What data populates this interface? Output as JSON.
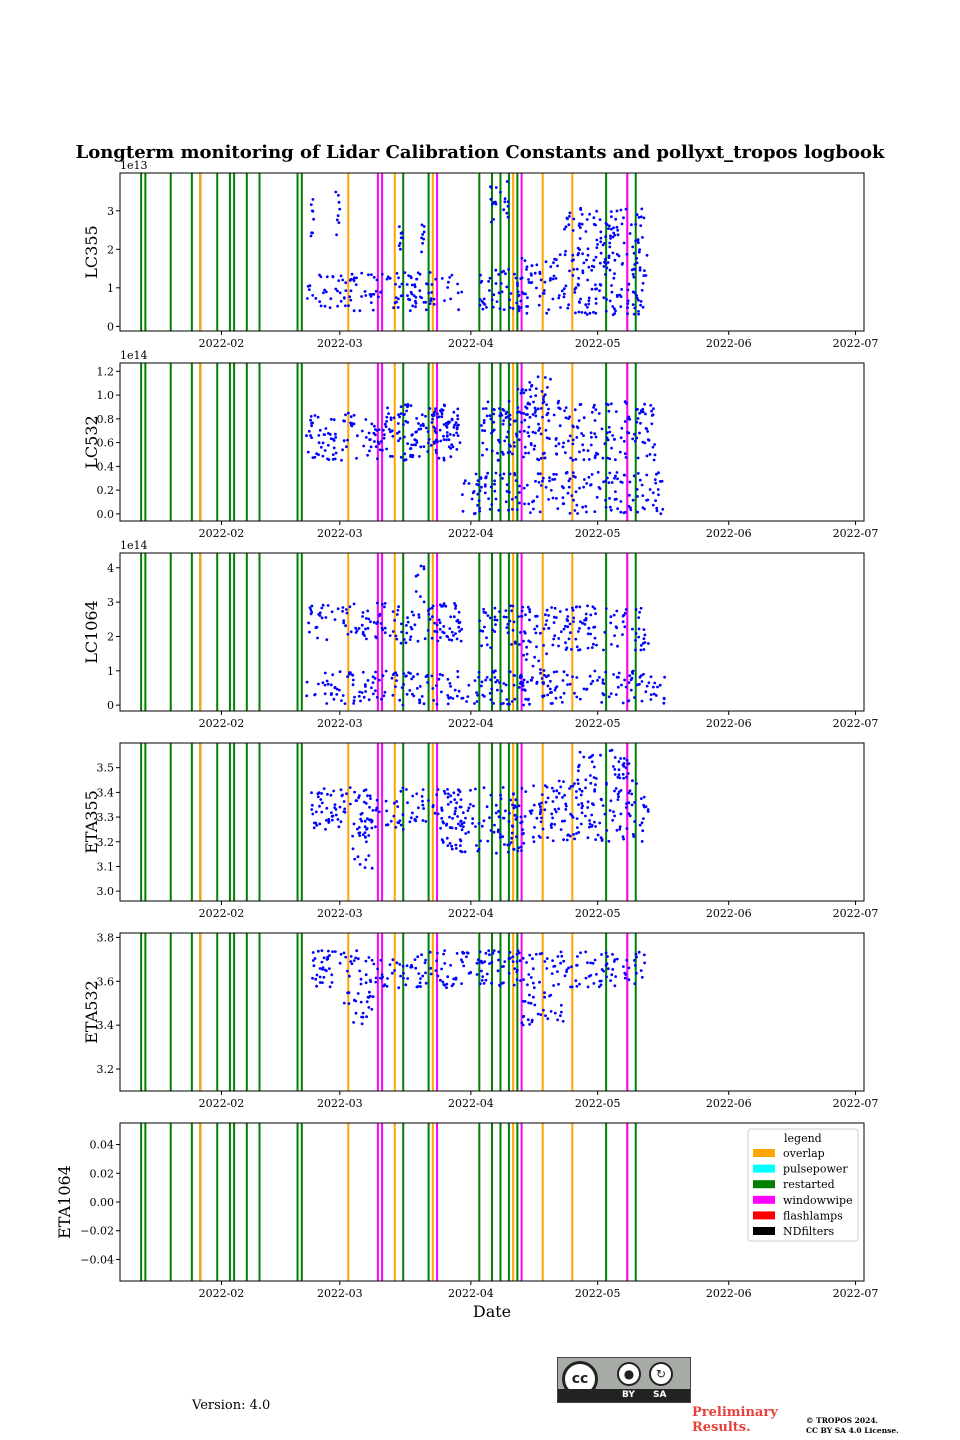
{
  "chart_data": {
    "type": "scatter",
    "title": "Longterm monitoring of Lidar Calibration Constants and pollyxt_tropos logbook",
    "xlabel": "Date",
    "x_range": [
      "2022-01-08",
      "2022-07-03"
    ],
    "x_ticks": [
      "2022-02",
      "2022-03",
      "2022-04",
      "2022-05",
      "2022-06",
      "2022-07"
    ],
    "x_tick_dates": [
      "2022-02-01",
      "2022-03-01",
      "2022-04-01",
      "2022-05-01",
      "2022-06-01",
      "2022-07-01"
    ],
    "point_color": "#0000ff",
    "events": {
      "overlap": [
        "2022-01-27",
        "2022-03-03",
        "2022-03-14",
        "2022-03-23",
        "2022-04-11",
        "2022-04-18",
        "2022-04-25",
        "2022-05-08"
      ],
      "restarted": [
        "2022-01-13",
        "2022-01-14",
        "2022-01-20",
        "2022-01-25",
        "2022-01-27",
        "2022-01-31",
        "2022-02-03",
        "2022-02-04",
        "2022-02-07",
        "2022-02-10",
        "2022-02-19",
        "2022-02-20",
        "2022-03-16",
        "2022-03-22",
        "2022-04-03",
        "2022-04-06",
        "2022-04-08",
        "2022-04-10",
        "2022-04-12",
        "2022-05-03",
        "2022-05-10"
      ],
      "windowwipe": [
        "2022-03-10",
        "2022-03-11",
        "2022-03-24",
        "2022-04-13",
        "2022-05-08"
      ]
    },
    "panels": [
      {
        "ylabel": "LC355",
        "offset": "1e13",
        "ylim": [
          -0.12,
          3.98
        ],
        "yticks": [
          0,
          1,
          2,
          3
        ],
        "ytick_labels": [
          "0",
          "1",
          "2",
          "3"
        ],
        "clusters": [
          {
            "start": "2022-02-21",
            "end": "2022-03-30",
            "min": 0.4,
            "max": 1.4
          },
          {
            "start": "2022-02-22",
            "end": "2022-02-23",
            "min": 2.3,
            "max": 3.4
          },
          {
            "start": "2022-02-28",
            "end": "2022-03-01",
            "min": 2.1,
            "max": 3.5
          },
          {
            "start": "2022-03-15",
            "end": "2022-03-16",
            "min": 2.0,
            "max": 2.6
          },
          {
            "start": "2022-03-19",
            "end": "2022-03-21",
            "min": 1.8,
            "max": 2.8
          },
          {
            "start": "2022-04-03",
            "end": "2022-04-14",
            "min": 0.4,
            "max": 1.5
          },
          {
            "start": "2022-04-05",
            "end": "2022-04-10",
            "min": 2.7,
            "max": 3.8
          },
          {
            "start": "2022-04-12",
            "end": "2022-05-13",
            "min": 0.3,
            "max": 1.9
          },
          {
            "start": "2022-04-23",
            "end": "2022-05-12",
            "min": 1.8,
            "max": 3.1
          }
        ]
      },
      {
        "ylabel": "LC532",
        "offset": "1e14",
        "ylim": [
          -0.06,
          1.27
        ],
        "yticks": [
          0.0,
          0.2,
          0.4,
          0.6,
          0.8,
          1.0,
          1.2
        ],
        "ytick_labels": [
          "0.0",
          "0.2",
          "0.4",
          "0.6",
          "0.8",
          "1.0",
          "1.2"
        ],
        "clusters": [
          {
            "start": "2022-02-21",
            "end": "2022-03-30",
            "min": 0.45,
            "max": 0.85
          },
          {
            "start": "2022-03-10",
            "end": "2022-03-29",
            "min": 0.6,
            "max": 0.95
          },
          {
            "start": "2022-04-03",
            "end": "2022-05-15",
            "min": 0.45,
            "max": 0.95
          },
          {
            "start": "2022-04-12",
            "end": "2022-04-20",
            "min": 0.8,
            "max": 1.2
          },
          {
            "start": "2022-03-30",
            "end": "2022-05-17",
            "min": 0.0,
            "max": 0.35
          }
        ]
      },
      {
        "ylabel": "LC1064",
        "offset": "1e14",
        "ylim": [
          -0.17,
          4.43
        ],
        "yticks": [
          0,
          1,
          2,
          3,
          4
        ],
        "ytick_labels": [
          "0",
          "1",
          "2",
          "3",
          "4"
        ],
        "clusters": [
          {
            "start": "2022-02-21",
            "end": "2022-03-30",
            "min": 1.8,
            "max": 3.0
          },
          {
            "start": "2022-03-19",
            "end": "2022-03-21",
            "min": 3.0,
            "max": 4.2
          },
          {
            "start": "2022-04-03",
            "end": "2022-05-13",
            "min": 1.6,
            "max": 2.9
          },
          {
            "start": "2022-04-12",
            "end": "2022-04-20",
            "min": 0.5,
            "max": 1.5
          },
          {
            "start": "2022-02-21",
            "end": "2022-05-17",
            "min": 0.0,
            "max": 1.0
          }
        ]
      },
      {
        "ylabel": "ETA355",
        "offset": "",
        "ylim": [
          2.96,
          3.6
        ],
        "yticks": [
          3.0,
          3.1,
          3.2,
          3.3,
          3.4,
          3.5
        ],
        "ytick_labels": [
          "3.0",
          "3.1",
          "3.2",
          "3.3",
          "3.4",
          "3.5"
        ],
        "clusters": [
          {
            "start": "2022-02-22",
            "end": "2022-03-30",
            "min": 3.25,
            "max": 3.42
          },
          {
            "start": "2022-03-04",
            "end": "2022-03-09",
            "min": 3.08,
            "max": 3.3
          },
          {
            "start": "2022-03-25",
            "end": "2022-04-14",
            "min": 3.15,
            "max": 3.42
          },
          {
            "start": "2022-04-15",
            "end": "2022-05-13",
            "min": 3.2,
            "max": 3.45
          },
          {
            "start": "2022-04-26",
            "end": "2022-05-09",
            "min": 3.45,
            "max": 3.58
          }
        ]
      },
      {
        "ylabel": "ETA532",
        "offset": "",
        "ylim": [
          3.1,
          3.82
        ],
        "yticks": [
          3.2,
          3.4,
          3.6,
          3.8
        ],
        "ytick_labels": [
          "3.2",
          "3.4",
          "3.6",
          "3.8"
        ],
        "clusters": [
          {
            "start": "2022-02-22",
            "end": "2022-05-13",
            "min": 3.57,
            "max": 3.74
          },
          {
            "start": "2022-03-02",
            "end": "2022-03-09",
            "min": 3.4,
            "max": 3.56
          },
          {
            "start": "2022-04-13",
            "end": "2022-04-23",
            "min": 3.4,
            "max": 3.55
          }
        ]
      },
      {
        "ylabel": "ETA1064",
        "offset": "",
        "ylim": [
          -0.055,
          0.055
        ],
        "yticks": [
          0.04,
          0.02,
          0.0,
          -0.02,
          -0.04
        ],
        "ytick_labels": [
          "0.04",
          "0.02",
          "0.00",
          "−0.02",
          "−0.04"
        ],
        "clusters": []
      }
    ],
    "legend": {
      "title": "legend",
      "entries": [
        {
          "label": "overlap",
          "color": "#ffa500"
        },
        {
          "label": "pulsepower",
          "color": "#00ffff"
        },
        {
          "label": "restarted",
          "color": "#008000"
        },
        {
          "label": "windowwipe",
          "color": "#ff00ff"
        },
        {
          "label": "flashlamps",
          "color": "#ff0000"
        },
        {
          "label": "NDfilters",
          "color": "#000000"
        }
      ]
    }
  },
  "footer": {
    "version": "Version: 4.0",
    "preliminary": "Preliminary Results.",
    "copyright_line1": "© TROPOS 2024.",
    "copyright_line2": "CC BY SA 4.0 License.",
    "cc_badge": {
      "circle": "cc",
      "by": "BY",
      "sa": "SA"
    }
  }
}
